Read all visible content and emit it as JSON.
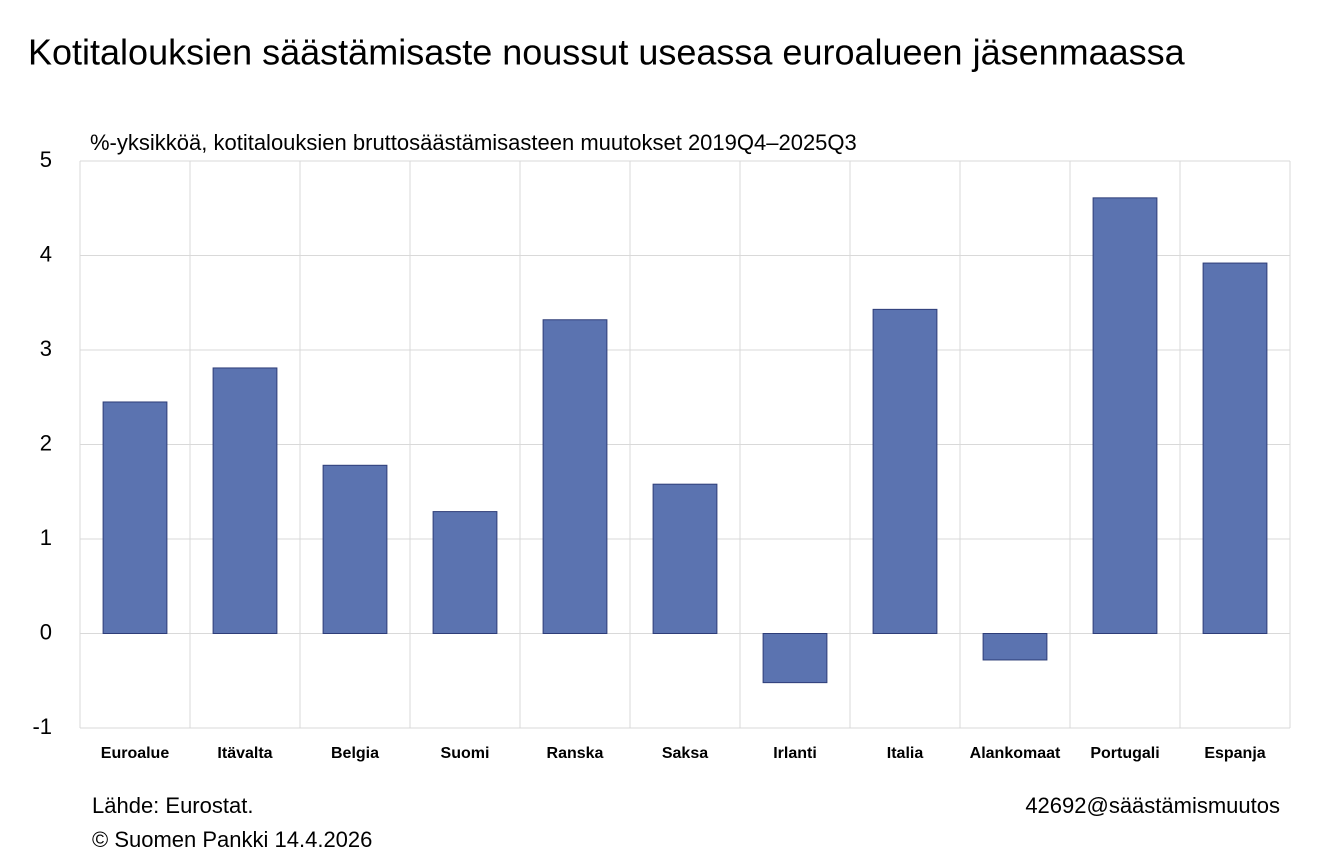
{
  "chart_data": {
    "type": "bar",
    "title": "Kotitalouksien säästämisaste noussut useassa euroalueen jäsenmaassa",
    "subtitle": "%-yksikköä, kotitalouksien bruttosäästämisasteen muutokset 2019Q4–2025Q3",
    "categories": [
      "Euroalue",
      "Itävalta",
      "Belgia",
      "Suomi",
      "Ranska",
      "Saksa",
      "Irlanti",
      "Italia",
      "Alankomaat",
      "Portugali",
      "Espanja"
    ],
    "values": [
      2.45,
      2.81,
      1.78,
      1.29,
      3.32,
      1.58,
      -0.52,
      3.43,
      -0.28,
      4.61,
      3.92
    ],
    "color": "#5b73b0",
    "ylim": [
      -1,
      5
    ],
    "yticks": [
      -1,
      0,
      1,
      2,
      3,
      4,
      5
    ],
    "grid": true,
    "source": "Lähde: Eurostat.",
    "copyright": "© Suomen Pankki 14.4.2026",
    "chart_code": "42692@säästämismuutos"
  }
}
